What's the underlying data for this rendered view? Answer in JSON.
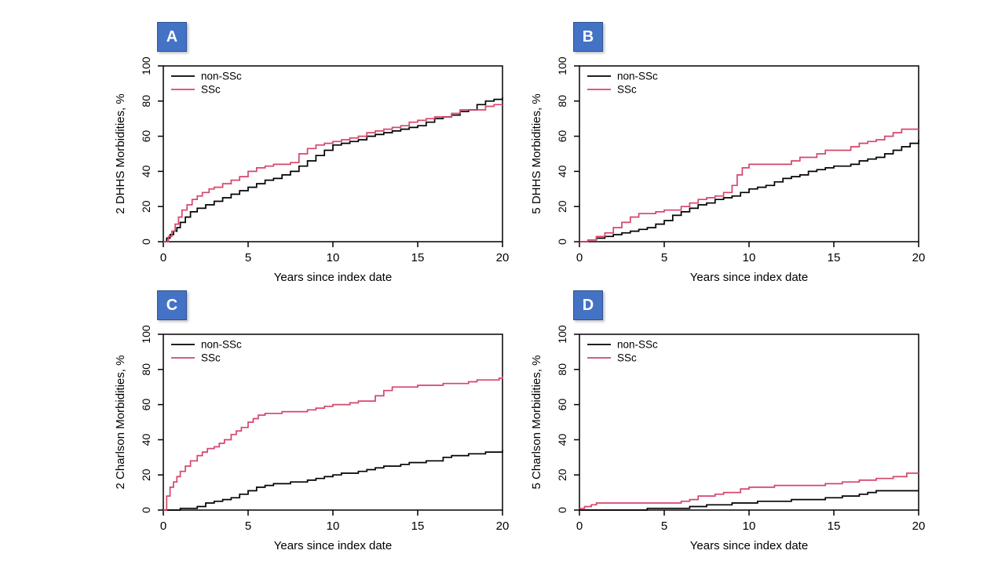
{
  "figure": {
    "background": "#ffffff",
    "description": "Four Kaplan-Meier style cumulative incidence curves comparing SSc vs non-SSc cohorts"
  },
  "colors": {
    "non_ssc_line": "#000000",
    "ssc_line": "#d6456b",
    "panel_badge_bg": "#4472c4",
    "panel_badge_border": "#2f5496",
    "panel_badge_text": "#ffffff",
    "axis": "#000000"
  },
  "chart_data": [
    {
      "type": "line",
      "panel": "A",
      "title": "",
      "xlabel": "Years since index date",
      "ylabel": "2 DHHS Morbidities, %",
      "xlim": [
        0,
        20
      ],
      "ylim": [
        0,
        100
      ],
      "xticks": [
        0,
        5,
        10,
        15,
        20
      ],
      "yticks": [
        0,
        20,
        40,
        60,
        80,
        100
      ],
      "grid": false,
      "legend_position": "top-left",
      "legend": [
        "non-SSc",
        "SSc"
      ],
      "series": [
        {
          "name": "non-SSc",
          "color": "#000000",
          "step": true,
          "x": [
            0,
            0.2,
            0.4,
            0.6,
            0.8,
            1,
            1.3,
            1.6,
            2,
            2.5,
            3,
            3.5,
            4,
            4.5,
            5,
            5.5,
            6,
            6.5,
            7,
            7.5,
            8,
            8.5,
            9,
            9.5,
            10,
            10.5,
            11,
            11.5,
            12,
            12.5,
            13,
            13.5,
            14,
            14.5,
            15,
            15.5,
            16,
            16.5,
            17,
            17.5,
            18,
            18.5,
            19,
            19.5,
            20
          ],
          "y": [
            0,
            2,
            4,
            6,
            8,
            11,
            14,
            17,
            19,
            21,
            23,
            25,
            27,
            29,
            31,
            33,
            35,
            36,
            38,
            40,
            43,
            46,
            49,
            52,
            55,
            56,
            57,
            58,
            60,
            61,
            62,
            63,
            64,
            65,
            66,
            68,
            70,
            71,
            72,
            74,
            75,
            78,
            80,
            81,
            82
          ]
        },
        {
          "name": "SSc",
          "color": "#d6456b",
          "step": true,
          "x": [
            0,
            0.3,
            0.5,
            0.7,
            0.9,
            1.1,
            1.4,
            1.7,
            2,
            2.3,
            2.7,
            3,
            3.5,
            4,
            4.5,
            5,
            5.5,
            6,
            6.5,
            7,
            7.5,
            8,
            8.5,
            9,
            9.5,
            10,
            10.5,
            11,
            11.5,
            12,
            12.5,
            13,
            13.5,
            14,
            14.5,
            15,
            15.5,
            16,
            17,
            17.5,
            18,
            19,
            19.5,
            20
          ],
          "y": [
            0,
            3,
            6,
            10,
            14,
            18,
            21,
            24,
            26,
            28,
            30,
            31,
            33,
            35,
            37,
            40,
            42,
            43,
            44,
            44,
            45,
            50,
            53,
            55,
            56,
            57,
            58,
            59,
            60,
            62,
            63,
            64,
            65,
            66,
            68,
            69,
            70,
            71,
            73,
            75,
            75,
            77,
            78,
            78
          ]
        }
      ]
    },
    {
      "type": "line",
      "panel": "B",
      "title": "",
      "xlabel": "Years since index date",
      "ylabel": "5 DHHS Morbidities, %",
      "xlim": [
        0,
        20
      ],
      "ylim": [
        0,
        100
      ],
      "xticks": [
        0,
        5,
        10,
        15,
        20
      ],
      "yticks": [
        0,
        20,
        40,
        60,
        80,
        100
      ],
      "grid": false,
      "legend_position": "top-left",
      "legend": [
        "non-SSc",
        "SSc"
      ],
      "series": [
        {
          "name": "non-SSc",
          "color": "#000000",
          "step": true,
          "x": [
            0,
            0.5,
            1,
            1.5,
            2,
            2.5,
            3,
            3.5,
            4,
            4.5,
            5,
            5.5,
            6,
            6.5,
            7,
            7.5,
            8,
            8.5,
            9,
            9.5,
            10,
            10.5,
            11,
            11.5,
            12,
            12.5,
            13,
            13.5,
            14,
            14.5,
            15,
            16,
            16.5,
            17,
            17.5,
            18,
            18.5,
            19,
            19.5,
            20
          ],
          "y": [
            0,
            1,
            2,
            3,
            4,
            5,
            6,
            7,
            8,
            10,
            12,
            15,
            17,
            19,
            21,
            22,
            24,
            25,
            26,
            28,
            30,
            31,
            32,
            34,
            36,
            37,
            38,
            40,
            41,
            42,
            43,
            44,
            46,
            47,
            48,
            50,
            52,
            54,
            56,
            58
          ]
        },
        {
          "name": "SSc",
          "color": "#d6456b",
          "step": true,
          "x": [
            0,
            0.5,
            1,
            1.5,
            2,
            2.5,
            3,
            3.5,
            4.5,
            5,
            6,
            6.5,
            7,
            7.5,
            8,
            8.5,
            9,
            9.3,
            9.6,
            10,
            12,
            12.5,
            13,
            14,
            14.5,
            15,
            16,
            16.5,
            17,
            17.5,
            18,
            18.5,
            19,
            20
          ],
          "y": [
            0,
            1,
            3,
            5,
            8,
            11,
            14,
            16,
            17,
            18,
            20,
            22,
            24,
            25,
            26,
            28,
            32,
            38,
            42,
            44,
            44,
            46,
            48,
            50,
            52,
            52,
            54,
            56,
            57,
            58,
            60,
            62,
            64,
            64
          ]
        }
      ]
    },
    {
      "type": "line",
      "panel": "C",
      "title": "",
      "xlabel": "Years since index date",
      "ylabel": "2 Charlson Morbidities, %",
      "xlim": [
        0,
        20
      ],
      "ylim": [
        0,
        100
      ],
      "xticks": [
        0,
        5,
        10,
        15,
        20
      ],
      "yticks": [
        0,
        20,
        40,
        60,
        80,
        100
      ],
      "grid": false,
      "legend_position": "top-left",
      "legend": [
        "non-SSc",
        "SSc"
      ],
      "series": [
        {
          "name": "non-SSc",
          "color": "#000000",
          "step": true,
          "x": [
            0,
            1,
            2,
            2.5,
            3,
            3.5,
            4,
            4.5,
            5,
            5.5,
            6,
            6.5,
            7.5,
            8.5,
            9,
            9.5,
            10,
            10.5,
            11.5,
            12,
            12.5,
            13,
            14,
            14.5,
            15.5,
            16.5,
            17,
            18,
            19,
            20
          ],
          "y": [
            0,
            1,
            2,
            4,
            5,
            6,
            7,
            9,
            11,
            13,
            14,
            15,
            16,
            17,
            18,
            19,
            20,
            21,
            22,
            23,
            24,
            25,
            26,
            27,
            28,
            30,
            31,
            32,
            33,
            34
          ]
        },
        {
          "name": "SSc",
          "color": "#d6456b",
          "step": true,
          "x": [
            0,
            0.2,
            0.4,
            0.6,
            0.8,
            1,
            1.3,
            1.6,
            2,
            2.3,
            2.6,
            3,
            3.3,
            3.6,
            4,
            4.3,
            4.6,
            5,
            5.3,
            5.6,
            6,
            7,
            8.5,
            9,
            9.5,
            10,
            11,
            11.5,
            12.5,
            13,
            13.5,
            15,
            16.5,
            18,
            18.5,
            19.8,
            20
          ],
          "y": [
            0,
            8,
            13,
            16,
            19,
            22,
            25,
            28,
            31,
            33,
            35,
            36,
            38,
            40,
            43,
            45,
            47,
            50,
            52,
            54,
            55,
            56,
            57,
            58,
            59,
            60,
            61,
            62,
            65,
            68,
            70,
            71,
            72,
            73,
            74,
            75,
            76
          ]
        }
      ]
    },
    {
      "type": "line",
      "panel": "D",
      "title": "",
      "xlabel": "Years since index date",
      "ylabel": "5 Charlson Morbidities, %",
      "xlim": [
        0,
        20
      ],
      "ylim": [
        0,
        100
      ],
      "xticks": [
        0,
        5,
        10,
        15,
        20
      ],
      "yticks": [
        0,
        20,
        40,
        60,
        80,
        100
      ],
      "grid": false,
      "legend_position": "top-left",
      "legend": [
        "non-SSc",
        "SSc"
      ],
      "series": [
        {
          "name": "non-SSc",
          "color": "#000000",
          "step": true,
          "x": [
            0,
            3.5,
            4,
            6,
            6.5,
            7.5,
            9,
            10.5,
            12.5,
            14.5,
            15.5,
            16.5,
            17,
            17.5,
            20
          ],
          "y": [
            0,
            0,
            1,
            1,
            2,
            3,
            4,
            5,
            6,
            7,
            8,
            9,
            10,
            11,
            11
          ]
        },
        {
          "name": "SSc",
          "color": "#d6456b",
          "step": true,
          "x": [
            0,
            0.3,
            0.7,
            1,
            6,
            6.5,
            7,
            8,
            8.5,
            9.5,
            10,
            11.5,
            14.5,
            15.5,
            16.5,
            17.5,
            18.5,
            19.3,
            20
          ],
          "y": [
            1,
            2,
            3,
            4,
            5,
            6,
            8,
            9,
            10,
            12,
            13,
            14,
            15,
            16,
            17,
            18,
            19,
            21,
            21
          ]
        }
      ]
    }
  ]
}
